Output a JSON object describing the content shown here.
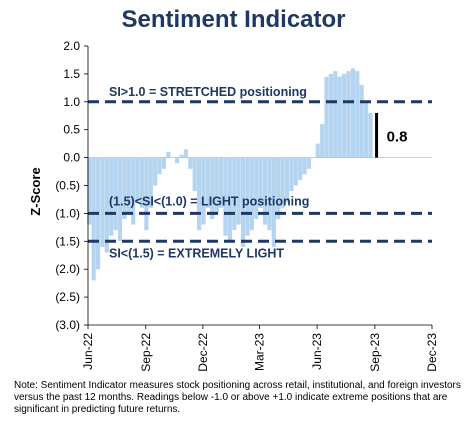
{
  "chart_data": {
    "type": "bar",
    "title": "Sentiment Indicator",
    "ylabel": "Z-Score",
    "ylim": [
      -3.0,
      2.0
    ],
    "yticks": [
      2.0,
      1.5,
      1.0,
      0.5,
      0.0,
      -0.5,
      -1.0,
      -1.5,
      -2.0,
      -2.5,
      -3.0
    ],
    "ytick_labels": [
      "2.0",
      "1.5",
      "1.0",
      "0.5",
      "0.0",
      "(0.5)",
      "(1.0)",
      "(1.5)",
      "(2.0)",
      "(2.5)",
      "(3.0)"
    ],
    "xtick_labels": [
      "Jun-22",
      "Sep-22",
      "Dec-22",
      "Mar-23",
      "Jun-23",
      "Sep-23",
      "Dec-23"
    ],
    "x_start": "2022-06-01",
    "x_end": "2023-12-01",
    "x": [
      "2022-06-03",
      "2022-06-10",
      "2022-06-17",
      "2022-06-24",
      "2022-07-01",
      "2022-07-08",
      "2022-07-15",
      "2022-07-22",
      "2022-07-29",
      "2022-08-05",
      "2022-08-12",
      "2022-08-19",
      "2022-08-26",
      "2022-09-02",
      "2022-09-09",
      "2022-09-16",
      "2022-09-23",
      "2022-09-30",
      "2022-10-07",
      "2022-10-14",
      "2022-10-21",
      "2022-10-28",
      "2022-11-04",
      "2022-11-11",
      "2022-11-18",
      "2022-11-25",
      "2022-12-02",
      "2022-12-09",
      "2022-12-16",
      "2022-12-23",
      "2022-12-30",
      "2023-01-06",
      "2023-01-13",
      "2023-01-20",
      "2023-01-27",
      "2023-02-03",
      "2023-02-10",
      "2023-02-17",
      "2023-02-24",
      "2023-03-03",
      "2023-03-10",
      "2023-03-17",
      "2023-03-24",
      "2023-03-31",
      "2023-04-07",
      "2023-04-14",
      "2023-04-21",
      "2023-04-28",
      "2023-05-05",
      "2023-05-12",
      "2023-05-19",
      "2023-05-26",
      "2023-06-02",
      "2023-06-09",
      "2023-06-16",
      "2023-06-23",
      "2023-06-30",
      "2023-07-07",
      "2023-07-14",
      "2023-07-21",
      "2023-07-28",
      "2023-08-04",
      "2023-08-11",
      "2023-08-18",
      "2023-08-25"
    ],
    "values": [
      -1.2,
      -2.2,
      -2.0,
      -1.6,
      -1.7,
      -1.4,
      -1.3,
      -1.5,
      -1.1,
      -1.0,
      -1.2,
      -0.8,
      -0.9,
      -1.3,
      -0.9,
      -0.5,
      -0.3,
      -0.2,
      0.1,
      0.0,
      -0.1,
      0.05,
      0.15,
      -0.2,
      -0.6,
      -1.3,
      -1.2,
      -0.9,
      -1.1,
      -1.0,
      -0.9,
      -1.4,
      -1.5,
      -1.3,
      -1.2,
      -1.6,
      -1.4,
      -1.3,
      -1.1,
      -0.9,
      -1.2,
      -1.3,
      -1.6,
      -1.1,
      -0.9,
      -0.8,
      -0.6,
      -0.5,
      -0.4,
      -0.3,
      -0.2,
      0.0,
      0.25,
      0.6,
      1.45,
      1.5,
      1.55,
      1.45,
      1.5,
      1.55,
      1.6,
      1.55,
      1.3,
      1.0,
      0.8
    ],
    "bar_color": "#b4d4f0",
    "reference_lines": [
      {
        "y": 1.0,
        "label": "SI>1.0 = STRETCHED positioning"
      },
      {
        "y": -1.0,
        "label": "(1.5)<SI<(1.0) = LIGHT positioning"
      },
      {
        "y": -1.5,
        "label": "SI<(1.5) = EXTREMELY LIGHT"
      }
    ],
    "reference_line_color": "#1f3864",
    "current_value": 0.8,
    "current_value_label": "0.8",
    "grid": false,
    "legend": "none"
  },
  "note": "Note: Sentiment Indicator measures stock positioning across retail, institutional, and foreign investors versus the past 12 months. Readings below -1.0 or above +1.0 indicate extreme positions that are significant in predicting future returns."
}
